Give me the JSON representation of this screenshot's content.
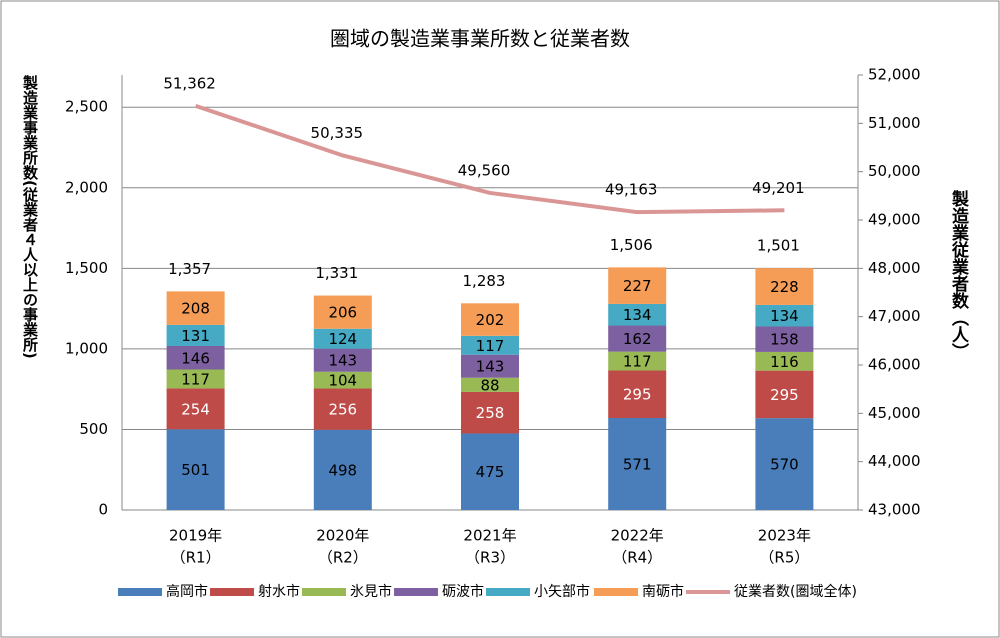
{
  "chart_data": {
    "type": "bar",
    "title": "圏域の製造業事業所数と従業者数",
    "y_label": "製造業事業所数(従業者４人以上の事業所)",
    "y2_label": "製造業従業者数（人）",
    "categories": [
      [
        "2019年",
        "（R1）"
      ],
      [
        "2020年",
        "（R2）"
      ],
      [
        "2021年",
        "（R3）"
      ],
      [
        "2022年",
        "（R4）"
      ],
      [
        "2023年",
        "（R5）"
      ]
    ],
    "series": [
      {
        "name": "高岡市",
        "color": "#4a7ebb",
        "values": [
          501,
          498,
          475,
          571,
          570
        ]
      },
      {
        "name": "射水市",
        "color": "#be4b48",
        "values": [
          254,
          256,
          258,
          295,
          295
        ]
      },
      {
        "name": "氷見市",
        "color": "#98b954",
        "values": [
          117,
          104,
          88,
          117,
          116
        ]
      },
      {
        "name": "砺波市",
        "color": "#7d60a0",
        "values": [
          146,
          143,
          143,
          162,
          158
        ]
      },
      {
        "name": "小矢部市",
        "color": "#46aac5",
        "values": [
          131,
          124,
          117,
          134,
          134
        ]
      },
      {
        "name": "南砺市",
        "color": "#f59d56",
        "values": [
          208,
          206,
          202,
          227,
          228
        ]
      },
      {
        "name": "従業者数(圏域全体)",
        "color": "#d99694",
        "type": "line",
        "axis": "y2",
        "values": [
          51362,
          50335,
          49560,
          49163,
          49201
        ],
        "value_labels": [
          "51,362",
          "50,335",
          "49,560",
          "49,163",
          "49,201"
        ]
      }
    ],
    "totals": [
      1357,
      1331,
      1283,
      1506,
      1501
    ],
    "total_labels": [
      "1,357",
      "1,331",
      "1,283",
      "1,506",
      "1,501"
    ],
    "ylim": [
      0,
      2700
    ],
    "yticks": [
      0,
      500,
      {
        "value": 1000,
        "label": "1,000"
      },
      {
        "value": 1500,
        "label": "1,500"
      },
      {
        "value": 2000,
        "label": "2,000"
      },
      {
        "value": 2500,
        "label": "2,500"
      }
    ],
    "y2lim": [
      43000,
      52000
    ],
    "y2ticks": [
      {
        "value": 43000,
        "label": "43,000"
      },
      {
        "value": 44000,
        "label": "44,000"
      },
      {
        "value": 45000,
        "label": "45,000"
      },
      {
        "value": 46000,
        "label": "46,000"
      },
      {
        "value": 47000,
        "label": "47,000"
      },
      {
        "value": 48000,
        "label": "48,000"
      },
      {
        "value": 49000,
        "label": "49,000"
      },
      {
        "value": 50000,
        "label": "50,000"
      },
      {
        "value": 51000,
        "label": "51,000"
      },
      {
        "value": 52000,
        "label": "52,000"
      }
    ],
    "grid": true,
    "legend": "bottom"
  }
}
